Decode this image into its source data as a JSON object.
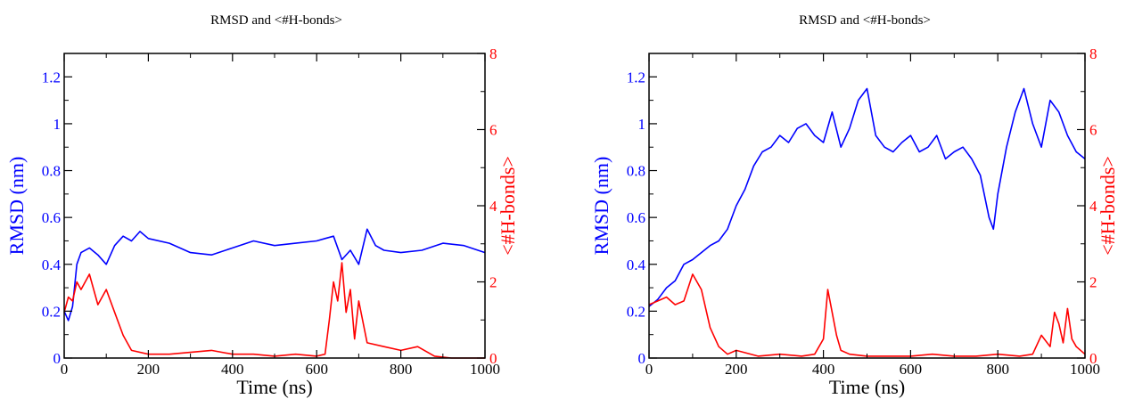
{
  "chart_data": [
    {
      "type": "line",
      "title": "RMSD and <#H-bonds>",
      "xlabel": "Time (ns)",
      "ylabel": "RMSD (nm)",
      "y2label": "<#H-bonds>",
      "xlim": [
        0,
        1000
      ],
      "ylim": [
        0,
        1.3
      ],
      "y2lim": [
        0,
        8
      ],
      "xticks": [
        "0",
        "200",
        "400",
        "600",
        "800",
        "1000"
      ],
      "yticks": [
        "0",
        "0.2",
        "0.4",
        "0.6",
        "0.8",
        "1",
        "1.2"
      ],
      "y2ticks": [
        "0",
        "2",
        "4",
        "6",
        "8"
      ],
      "grid": false,
      "colors": {
        "rmsd": "#0000ff",
        "hbonds": "#ff0000"
      },
      "series": [
        {
          "axis": "left",
          "color": "#0000ff",
          "x": [
            0,
            10,
            20,
            30,
            40,
            60,
            80,
            100,
            120,
            140,
            160,
            180,
            200,
            250,
            300,
            350,
            400,
            450,
            500,
            550,
            600,
            620,
            640,
            660,
            680,
            700,
            720,
            740,
            760,
            800,
            850,
            900,
            950,
            1000
          ],
          "values": [
            0.2,
            0.16,
            0.22,
            0.4,
            0.45,
            0.47,
            0.44,
            0.4,
            0.48,
            0.52,
            0.5,
            0.54,
            0.51,
            0.49,
            0.45,
            0.44,
            0.47,
            0.5,
            0.48,
            0.49,
            0.5,
            0.51,
            0.52,
            0.42,
            0.46,
            0.4,
            0.55,
            0.48,
            0.46,
            0.45,
            0.46,
            0.49,
            0.48,
            0.45
          ]
        },
        {
          "axis": "right",
          "color": "#ff0000",
          "x": [
            0,
            10,
            20,
            30,
            40,
            60,
            80,
            100,
            120,
            140,
            160,
            200,
            250,
            300,
            350,
            400,
            450,
            500,
            550,
            600,
            620,
            630,
            640,
            650,
            660,
            670,
            680,
            690,
            700,
            720,
            760,
            800,
            840,
            880,
            920,
            960,
            1000
          ],
          "values": [
            1.2,
            1.6,
            1.5,
            2.0,
            1.8,
            2.2,
            1.4,
            1.8,
            1.2,
            0.6,
            0.2,
            0.1,
            0.1,
            0.15,
            0.2,
            0.1,
            0.1,
            0.05,
            0.1,
            0.05,
            0.1,
            1.0,
            2.0,
            1.5,
            2.5,
            1.2,
            1.8,
            0.5,
            1.5,
            0.4,
            0.3,
            0.2,
            0.3,
            0.05,
            0.0,
            0.0,
            0.0
          ]
        }
      ]
    },
    {
      "type": "line",
      "title": "RMSD and <#H-bonds>",
      "xlabel": "Time (ns)",
      "ylabel": "RMSD (nm)",
      "y2label": "<#H-bonds>",
      "xlim": [
        0,
        1000
      ],
      "ylim": [
        0,
        1.3
      ],
      "y2lim": [
        0,
        8
      ],
      "xticks": [
        "0",
        "200",
        "400",
        "600",
        "800",
        "1000"
      ],
      "yticks": [
        "0",
        "0.2",
        "0.4",
        "0.6",
        "0.8",
        "1",
        "1.2"
      ],
      "y2ticks": [
        "0",
        "2",
        "4",
        "6",
        "8"
      ],
      "grid": false,
      "colors": {
        "rmsd": "#0000ff",
        "hbonds": "#ff0000"
      },
      "series": [
        {
          "axis": "left",
          "color": "#0000ff",
          "x": [
            0,
            20,
            40,
            60,
            80,
            100,
            120,
            140,
            160,
            180,
            200,
            220,
            240,
            260,
            280,
            300,
            320,
            340,
            360,
            380,
            400,
            420,
            440,
            460,
            480,
            500,
            520,
            540,
            560,
            580,
            600,
            620,
            640,
            660,
            680,
            700,
            720,
            740,
            760,
            780,
            790,
            800,
            820,
            840,
            860,
            880,
            900,
            920,
            940,
            960,
            980,
            1000
          ],
          "values": [
            0.22,
            0.25,
            0.3,
            0.33,
            0.4,
            0.42,
            0.45,
            0.48,
            0.5,
            0.55,
            0.65,
            0.72,
            0.82,
            0.88,
            0.9,
            0.95,
            0.92,
            0.98,
            1.0,
            0.95,
            0.92,
            1.05,
            0.9,
            0.98,
            1.1,
            1.15,
            0.95,
            0.9,
            0.88,
            0.92,
            0.95,
            0.88,
            0.9,
            0.95,
            0.85,
            0.88,
            0.9,
            0.85,
            0.78,
            0.6,
            0.55,
            0.7,
            0.9,
            1.05,
            1.15,
            1.0,
            0.9,
            1.1,
            1.05,
            0.95,
            0.88,
            0.85
          ]
        },
        {
          "axis": "right",
          "color": "#ff0000",
          "x": [
            0,
            20,
            40,
            60,
            80,
            100,
            120,
            140,
            160,
            180,
            200,
            250,
            300,
            350,
            380,
            400,
            410,
            420,
            430,
            440,
            460,
            500,
            550,
            600,
            650,
            700,
            750,
            800,
            850,
            880,
            900,
            920,
            930,
            940,
            950,
            960,
            970,
            980,
            1000
          ],
          "values": [
            1.4,
            1.5,
            1.6,
            1.4,
            1.5,
            2.2,
            1.8,
            0.8,
            0.3,
            0.1,
            0.2,
            0.05,
            0.1,
            0.05,
            0.1,
            0.5,
            1.8,
            1.2,
            0.6,
            0.2,
            0.1,
            0.05,
            0.05,
            0.05,
            0.1,
            0.05,
            0.05,
            0.1,
            0.05,
            0.1,
            0.6,
            0.3,
            1.2,
            0.9,
            0.4,
            1.3,
            0.5,
            0.3,
            0.1
          ]
        }
      ]
    }
  ]
}
